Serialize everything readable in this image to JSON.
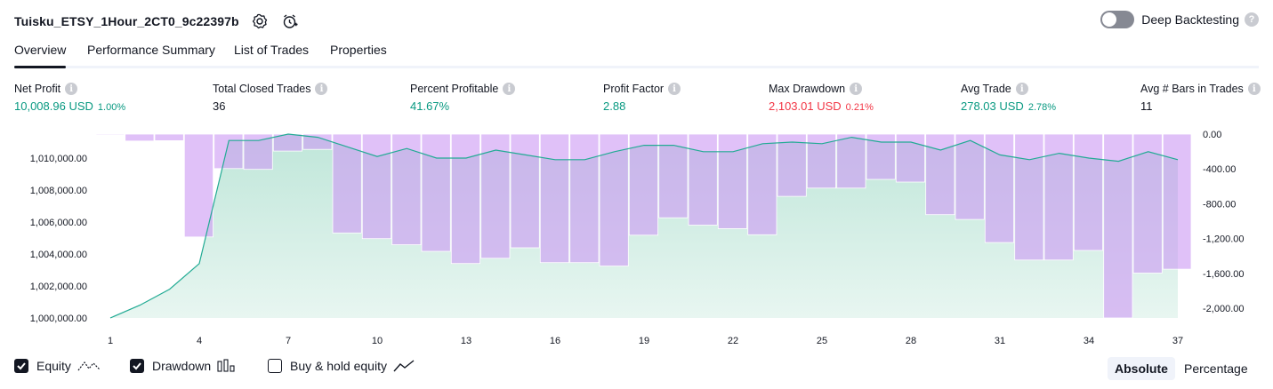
{
  "header": {
    "title": "Tuisku_ETSY_1Hour_2CT0_9c22397b"
  },
  "deep_backtesting": {
    "label": "Deep Backtesting",
    "help": "?"
  },
  "tabs": [
    {
      "label": "Overview"
    },
    {
      "label": "Performance Summary"
    },
    {
      "label": "List of Trades"
    },
    {
      "label": "Properties"
    }
  ],
  "stats": [
    {
      "label": "Net Profit",
      "value": "10,008.96 USD",
      "pct": "1.00%",
      "color": "#089981"
    },
    {
      "label": "Total Closed Trades",
      "value": "36",
      "pct": "",
      "color": "#131722"
    },
    {
      "label": "Percent Profitable",
      "value": "41.67%",
      "pct": "",
      "color": "#089981"
    },
    {
      "label": "Profit Factor",
      "value": "2.88",
      "pct": "",
      "color": "#089981"
    },
    {
      "label": "Max Drawdown",
      "value": "2,103.01 USD",
      "pct": "0.21%",
      "color": "#f23645"
    },
    {
      "label": "Avg Trade",
      "value": "278.03 USD",
      "pct": "2.78%",
      "color": "#089981"
    },
    {
      "label": "Avg # Bars in Trades",
      "value": "11",
      "pct": "",
      "color": "#131722"
    }
  ],
  "legend": {
    "equity": "Equity",
    "drawdown": "Drawdown",
    "buy_hold": "Buy & hold equity",
    "equity_checked": true,
    "drawdown_checked": true,
    "buy_hold_checked": false
  },
  "mode": {
    "absolute": "Absolute",
    "percentage": "Percentage",
    "selected": "Absolute"
  },
  "chart_data": {
    "type": "area",
    "x_ticks": [
      "1",
      "4",
      "7",
      "10",
      "13",
      "16",
      "19",
      "22",
      "25",
      "28",
      "31",
      "34",
      "37"
    ],
    "left_axis": {
      "ticks": [
        "1,000,000.00",
        "1,002,000.00",
        "1,004,000.00",
        "1,006,000.00",
        "1,008,000.00",
        "1,010,000.00"
      ],
      "ylim": [
        1000000,
        1011500
      ]
    },
    "right_axis": {
      "ticks": [
        "0.00",
        "-400.00",
        "-800.00",
        "-1,200.00",
        "-1,600.00",
        "-2,000.00"
      ],
      "ylim": [
        -2110,
        0
      ]
    },
    "series": [
      {
        "name": "Equity",
        "x": [
          1,
          2,
          3,
          4,
          5,
          6,
          7,
          8,
          9,
          10,
          11,
          12,
          13,
          14,
          15,
          16,
          17,
          18,
          19,
          20,
          21,
          22,
          23,
          24,
          25,
          26,
          27,
          28,
          29,
          30,
          31,
          32,
          33,
          34,
          35,
          36,
          37
        ],
        "values": [
          1000000,
          1000800,
          1001800,
          1003400,
          1011100,
          1011100,
          1011500,
          1011300,
          1010700,
          1010100,
          1010600,
          1010000,
          1010000,
          1010500,
          1010200,
          1009900,
          1009900,
          1010400,
          1010800,
          1010800,
          1010400,
          1010400,
          1010900,
          1011000,
          1010900,
          1011300,
          1011000,
          1011000,
          1010500,
          1011100,
          1010200,
          1009900,
          1010300,
          1010000,
          1009800,
          1010400,
          1009900
        ],
        "color": "#22ab94"
      },
      {
        "name": "Drawdown",
        "x": [
          1,
          2,
          3,
          4,
          5,
          6,
          7,
          8,
          9,
          10,
          11,
          12,
          13,
          14,
          15,
          16,
          17,
          18,
          19,
          20,
          21,
          22,
          23,
          24,
          25,
          26,
          27,
          28,
          29,
          30,
          31,
          32,
          33,
          34,
          35,
          36,
          37
        ],
        "values": [
          -5,
          -80,
          -75,
          -1180,
          -395,
          -405,
          -195,
          -175,
          -1135,
          -1200,
          -1270,
          -1345,
          -1485,
          -1425,
          -1305,
          -1475,
          -1475,
          -1515,
          -1160,
          -960,
          -1045,
          -1085,
          -1155,
          -715,
          -620,
          -620,
          -520,
          -550,
          -925,
          -980,
          -1245,
          -1445,
          -1445,
          -1335,
          -2110,
          -1595,
          -1550
        ],
        "color": "#cd9bf4"
      }
    ]
  }
}
